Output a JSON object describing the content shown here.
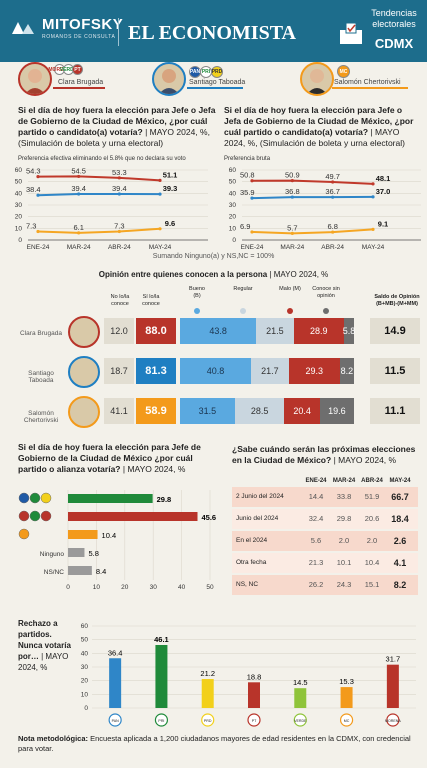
{
  "header": {
    "logo1": "MITOFSKY",
    "logo1_sub": "ROMANOS DE CONSULTA",
    "logo2": "EL ECONOMISTA",
    "badge_line1": "Tendencias",
    "badge_line2": "electorales",
    "badge_line3": "CDMX"
  },
  "candidates": [
    {
      "name": "Clara Brugada",
      "color": "#b8342a"
    },
    {
      "name": "Santiago Taboada",
      "color": "#1f7fc2"
    },
    {
      "name": "Salomón Chertorivski",
      "color": "#f39a1b"
    }
  ],
  "parties": {
    "morena": "MORENA",
    "pt": "PT",
    "pvem": "VERDE",
    "pan": "PAN",
    "pri": "PRI",
    "prd": "PRD",
    "mc": "MC"
  },
  "q1": {
    "title": "Si el día de hoy fuera la elección para Jefe o Jefa de Gobierno de la Ciudad de México, ¿por cuál partido o candidato(a) votaría?",
    "meta": "| MAYO 2024, %, (Simulación de boleta y urna electoral)",
    "subtitle": "Preferencia efectiva eliminando el 5.8% que no declara su voto"
  },
  "q2": {
    "title": "Si el día de hoy fuera la elección para Jefe o Jefa de Gobierno de la Ciudad de México, ¿por cuál partido o candidato(a) votaría?",
    "meta": "| MAYO 2024, %, (Simulación de boleta y urna electoral)",
    "subtitle": "Preferencia bruta"
  },
  "footnote_lines": "Sumando Ninguno(a) y NS,NC = 100%",
  "opinion": {
    "title": "Opinión entre quienes conocen a la persona",
    "meta": "| MAYO 2024, %",
    "col_no": "No lo/la conoce",
    "col_si": "Sí lo/la conoce",
    "col_bueno": "Bueno (B)",
    "col_regular": "Regular",
    "col_malo": "Malo (M)",
    "col_conoce": "Conoce sin opinión",
    "col_saldo": "Saldo de Opinión (B+MB)-(M+MM)",
    "rows": [
      {
        "name": "Clara Brugada",
        "no": "12.0",
        "si": "88.0",
        "bueno": "43.8",
        "regular": "21.5",
        "malo": "28.9",
        "sin": "5.8",
        "saldo": "14.9"
      },
      {
        "name": "Santiago Taboada",
        "no": "18.7",
        "si": "81.3",
        "bueno": "40.8",
        "regular": "21.7",
        "malo": "29.3",
        "sin": "8.2",
        "saldo": "11.5"
      },
      {
        "name": "Salomón Chertorivski",
        "no": "41.1",
        "si": "58.9",
        "bueno": "31.5",
        "regular": "28.5",
        "malo": "20.4",
        "sin": "19.6",
        "saldo": "11.1"
      }
    ]
  },
  "q3": {
    "title": "Si el día de hoy fuera la elección para Jefe de Gobierno de la Ciudad de México ¿por cuál partido o alianza votaría?",
    "meta": "| MAYO 2024, %",
    "labels": [
      "",
      "",
      "",
      "Ninguno",
      "NS/NC"
    ]
  },
  "q4": {
    "title": "¿Sabe cuándo serán las próximas elecciones en la Ciudad de México?",
    "meta": "| MAYO 2024, %",
    "headers": [
      "ENE-24",
      "MAR-24",
      "ABR-24",
      "MAY-24"
    ],
    "rows": [
      {
        "label": "2 Junio del 2024",
        "vals": [
          "14.4",
          "33.8",
          "51.9",
          "66.7"
        ]
      },
      {
        "label": "Junio del 2024",
        "vals": [
          "32.4",
          "29.8",
          "20.6",
          "18.4"
        ]
      },
      {
        "label": "En el 2024",
        "vals": [
          "5.6",
          "2.0",
          "2.0",
          "2.6"
        ]
      },
      {
        "label": "Otra fecha",
        "vals": [
          "21.3",
          "10.1",
          "10.4",
          "4.1"
        ]
      },
      {
        "label": "NS, NC",
        "vals": [
          "26.2",
          "24.3",
          "15.1",
          "8.2"
        ]
      }
    ]
  },
  "q5": {
    "title": "Rechazo a partidos. Nunca votaría por…",
    "meta": "| MAYO 2024, %"
  },
  "note": {
    "label": "Nota metodológica:",
    "text": "Encuesta aplicada a 1,200 ciudadanos mayores de edad residentes en la CDMX, con credencial para votar."
  },
  "chart_data": [
    {
      "type": "line",
      "title": "Preferencia efectiva eliminando el 5.8% que no declara su voto",
      "x": [
        "ENE-24",
        "MAR-24",
        "ABR-24",
        "MAY-24"
      ],
      "ylim": [
        0,
        60
      ],
      "yticks": [
        0,
        10,
        20,
        30,
        40,
        50,
        60
      ],
      "series": [
        {
          "name": "Clara Brugada",
          "color": "#c0392b",
          "values": [
            54.3,
            54.5,
            53.3,
            51.1
          ]
        },
        {
          "name": "Santiago Taboada",
          "color": "#2f86c8",
          "values": [
            38.4,
            39.4,
            39.4,
            39.3
          ]
        },
        {
          "name": "Salomón Chertorivski",
          "color": "#f5a623",
          "values": [
            7.3,
            6.1,
            7.3,
            9.6
          ]
        }
      ]
    },
    {
      "type": "line",
      "title": "Preferencia bruta",
      "x": [
        "ENE-24",
        "MAR-24",
        "ABR-24",
        "MAY-24"
      ],
      "ylim": [
        0,
        60
      ],
      "yticks": [
        0,
        10,
        20,
        30,
        40,
        50,
        60
      ],
      "series": [
        {
          "name": "Clara Brugada",
          "color": "#c0392b",
          "values": [
            50.8,
            50.9,
            49.7,
            48.1
          ]
        },
        {
          "name": "Santiago Taboada",
          "color": "#2f86c8",
          "values": [
            35.9,
            36.8,
            36.7,
            37.0
          ]
        },
        {
          "name": "Salomón Chertorivski",
          "color": "#f5a623",
          "values": [
            6.9,
            5.7,
            6.8,
            9.1
          ]
        }
      ]
    },
    {
      "type": "bar",
      "orientation": "horizontal",
      "categories": [
        "PAN-PRI-PRD",
        "MORENA-PT-VERDE",
        "MC",
        "Ninguno",
        "NS/NC"
      ],
      "values": [
        29.8,
        45.6,
        10.4,
        5.8,
        8.4
      ],
      "colors": [
        "#1f8a3a",
        "#b8342a",
        "#f39a1b",
        "#9a9a9a",
        "#9a9a9a"
      ],
      "xlim": [
        0,
        50
      ],
      "xticks": [
        0,
        10,
        20,
        30,
        40,
        50
      ]
    },
    {
      "type": "bar",
      "categories": [
        "PAN",
        "PRI",
        "PRD",
        "PT",
        "VERDE",
        "MC",
        "MORENA"
      ],
      "values": [
        36.4,
        46.1,
        21.2,
        18.8,
        14.5,
        15.3,
        31.7
      ],
      "colors": [
        "#2f86c8",
        "#1f8a3a",
        "#f2d01b",
        "#b8342a",
        "#8fc43a",
        "#f39a1b",
        "#b8342a"
      ],
      "ylim": [
        0,
        60
      ],
      "yticks": [
        0,
        10,
        20,
        30,
        40,
        50,
        60
      ]
    }
  ]
}
